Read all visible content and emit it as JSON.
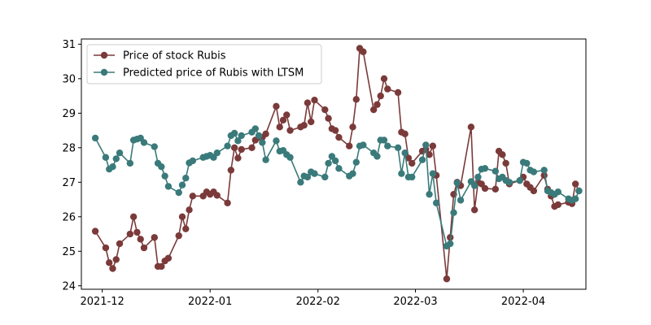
{
  "chart_data": {
    "type": "line",
    "title": "",
    "xlabel": "",
    "ylabel": "",
    "x_axis": {
      "type": "date",
      "range": [
        "2021-11-25",
        "2022-04-19"
      ],
      "ticks": [
        {
          "date": "2021-12-01",
          "label": "2021-12"
        },
        {
          "date": "2022-01-01",
          "label": "2022-01"
        },
        {
          "date": "2022-02-01",
          "label": "2022-02"
        },
        {
          "date": "2022-03-01",
          "label": "2022-03"
        },
        {
          "date": "2022-04-01",
          "label": "2022-04"
        }
      ]
    },
    "y_axis": {
      "range": [
        23.9,
        31.15
      ],
      "ticks": [
        24,
        25,
        26,
        27,
        28,
        29,
        30,
        31
      ]
    },
    "legend": {
      "position": "upper-left"
    },
    "grid": false,
    "series": [
      {
        "name": "Price of stock Rubis",
        "color": "#7b3a3a",
        "points": [
          [
            "2021-11-29",
            25.58
          ],
          [
            "2021-12-02",
            25.1
          ],
          [
            "2021-12-03",
            24.67
          ],
          [
            "2021-12-04",
            24.5
          ],
          [
            "2021-12-05",
            24.76
          ],
          [
            "2021-12-06",
            25.22
          ],
          [
            "2021-12-09",
            25.5
          ],
          [
            "2021-12-10",
            26.0
          ],
          [
            "2021-12-11",
            25.55
          ],
          [
            "2021-12-12",
            25.35
          ],
          [
            "2021-12-13",
            25.1
          ],
          [
            "2021-12-16",
            25.4
          ],
          [
            "2021-12-17",
            24.56
          ],
          [
            "2021-12-18",
            24.56
          ],
          [
            "2021-12-19",
            24.72
          ],
          [
            "2021-12-20",
            24.8
          ],
          [
            "2021-12-23",
            25.45
          ],
          [
            "2021-12-24",
            26.0
          ],
          [
            "2021-12-25",
            25.65
          ],
          [
            "2021-12-26",
            26.2
          ],
          [
            "2021-12-27",
            26.6
          ],
          [
            "2021-12-30",
            26.6
          ],
          [
            "2021-12-31",
            26.72
          ],
          [
            "2022-01-01",
            26.65
          ],
          [
            "2022-01-02",
            26.72
          ],
          [
            "2022-01-03",
            26.62
          ],
          [
            "2022-01-06",
            26.4
          ],
          [
            "2022-01-07",
            27.35
          ],
          [
            "2022-01-08",
            28.0
          ],
          [
            "2022-01-09",
            27.7
          ],
          [
            "2022-01-10",
            27.95
          ],
          [
            "2022-01-13",
            28.0
          ],
          [
            "2022-01-14",
            28.22
          ],
          [
            "2022-01-15",
            28.3
          ],
          [
            "2022-01-16",
            28.3
          ],
          [
            "2022-01-17",
            28.4
          ],
          [
            "2022-01-20",
            29.2
          ],
          [
            "2022-01-21",
            28.6
          ],
          [
            "2022-01-22",
            28.8
          ],
          [
            "2022-01-23",
            28.95
          ],
          [
            "2022-01-24",
            28.5
          ],
          [
            "2022-01-27",
            28.6
          ],
          [
            "2022-01-28",
            28.65
          ],
          [
            "2022-01-29",
            29.3
          ],
          [
            "2022-01-30",
            28.75
          ],
          [
            "2022-01-31",
            29.38
          ],
          [
            "2022-02-03",
            29.1
          ],
          [
            "2022-02-04",
            28.85
          ],
          [
            "2022-02-05",
            28.55
          ],
          [
            "2022-02-06",
            28.5
          ],
          [
            "2022-02-07",
            28.3
          ],
          [
            "2022-02-10",
            28.05
          ],
          [
            "2022-02-11",
            28.6
          ],
          [
            "2022-02-12",
            29.4
          ],
          [
            "2022-02-13",
            30.88
          ],
          [
            "2022-02-14",
            30.78
          ],
          [
            "2022-02-17",
            29.1
          ],
          [
            "2022-02-18",
            29.25
          ],
          [
            "2022-02-19",
            29.5
          ],
          [
            "2022-02-20",
            30.0
          ],
          [
            "2022-02-21",
            29.7
          ],
          [
            "2022-02-24",
            29.6
          ],
          [
            "2022-02-25",
            28.45
          ],
          [
            "2022-02-26",
            28.4
          ],
          [
            "2022-02-27",
            27.7
          ],
          [
            "2022-02-28",
            27.55
          ],
          [
            "2022-03-03",
            27.9
          ],
          [
            "2022-03-04",
            27.95
          ],
          [
            "2022-03-05",
            27.8
          ],
          [
            "2022-03-06",
            28.05
          ],
          [
            "2022-03-07",
            27.2
          ],
          [
            "2022-03-10",
            24.2
          ],
          [
            "2022-03-11",
            25.4
          ],
          [
            "2022-03-12",
            26.65
          ],
          [
            "2022-03-13",
            27.0
          ],
          [
            "2022-03-14",
            26.9
          ],
          [
            "2022-03-17",
            28.6
          ],
          [
            "2022-03-18",
            26.2
          ],
          [
            "2022-03-19",
            27.0
          ],
          [
            "2022-03-20",
            26.95
          ],
          [
            "2022-03-21",
            26.82
          ],
          [
            "2022-03-24",
            26.8
          ],
          [
            "2022-03-25",
            27.9
          ],
          [
            "2022-03-26",
            27.8
          ],
          [
            "2022-03-27",
            27.55
          ],
          [
            "2022-03-28",
            26.95
          ],
          [
            "2022-03-31",
            27.05
          ],
          [
            "2022-04-01",
            27.15
          ],
          [
            "2022-04-02",
            26.95
          ],
          [
            "2022-04-03",
            26.85
          ],
          [
            "2022-04-04",
            26.75
          ],
          [
            "2022-04-07",
            27.2
          ],
          [
            "2022-04-08",
            26.8
          ],
          [
            "2022-04-09",
            26.6
          ],
          [
            "2022-04-10",
            26.3
          ],
          [
            "2022-04-11",
            26.35
          ],
          [
            "2022-04-14",
            26.42
          ],
          [
            "2022-04-15",
            26.38
          ],
          [
            "2022-04-16",
            26.95
          ],
          [
            "2022-04-17",
            26.75
          ]
        ]
      },
      {
        "name": "Predicted price of Rubis with LTSM",
        "color": "#3a7a7a",
        "points": [
          [
            "2021-11-29",
            28.28
          ],
          [
            "2021-12-02",
            27.72
          ],
          [
            "2021-12-03",
            27.38
          ],
          [
            "2021-12-04",
            27.45
          ],
          [
            "2021-12-05",
            27.68
          ],
          [
            "2021-12-06",
            27.85
          ],
          [
            "2021-12-09",
            27.55
          ],
          [
            "2021-12-10",
            28.22
          ],
          [
            "2021-12-11",
            28.25
          ],
          [
            "2021-12-12",
            28.28
          ],
          [
            "2021-12-13",
            28.15
          ],
          [
            "2021-12-16",
            28.03
          ],
          [
            "2021-12-17",
            27.55
          ],
          [
            "2021-12-18",
            27.45
          ],
          [
            "2021-12-19",
            27.18
          ],
          [
            "2021-12-20",
            26.88
          ],
          [
            "2021-12-23",
            26.7
          ],
          [
            "2021-12-24",
            26.92
          ],
          [
            "2021-12-25",
            27.12
          ],
          [
            "2021-12-26",
            27.56
          ],
          [
            "2021-12-27",
            27.62
          ],
          [
            "2021-12-30",
            27.72
          ],
          [
            "2021-12-31",
            27.75
          ],
          [
            "2022-01-01",
            27.78
          ],
          [
            "2022-01-02",
            27.72
          ],
          [
            "2022-01-03",
            27.85
          ],
          [
            "2022-01-06",
            28.05
          ],
          [
            "2022-01-07",
            28.35
          ],
          [
            "2022-01-08",
            28.42
          ],
          [
            "2022-01-09",
            28.2
          ],
          [
            "2022-01-10",
            28.35
          ],
          [
            "2022-01-13",
            28.45
          ],
          [
            "2022-01-14",
            28.55
          ],
          [
            "2022-01-15",
            28.35
          ],
          [
            "2022-01-16",
            28.15
          ],
          [
            "2022-01-17",
            27.65
          ],
          [
            "2022-01-20",
            28.2
          ],
          [
            "2022-01-21",
            27.9
          ],
          [
            "2022-01-22",
            27.92
          ],
          [
            "2022-01-23",
            27.8
          ],
          [
            "2022-01-24",
            27.72
          ],
          [
            "2022-01-27",
            27.0
          ],
          [
            "2022-01-28",
            27.18
          ],
          [
            "2022-01-29",
            27.15
          ],
          [
            "2022-01-30",
            27.3
          ],
          [
            "2022-01-31",
            27.25
          ],
          [
            "2022-02-03",
            27.15
          ],
          [
            "2022-02-04",
            27.55
          ],
          [
            "2022-02-05",
            27.75
          ],
          [
            "2022-02-06",
            27.62
          ],
          [
            "2022-02-07",
            27.4
          ],
          [
            "2022-02-10",
            27.18
          ],
          [
            "2022-02-11",
            27.25
          ],
          [
            "2022-02-12",
            27.58
          ],
          [
            "2022-02-13",
            28.05
          ],
          [
            "2022-02-14",
            28.08
          ],
          [
            "2022-02-17",
            27.85
          ],
          [
            "2022-02-18",
            27.75
          ],
          [
            "2022-02-19",
            28.22
          ],
          [
            "2022-02-20",
            28.22
          ],
          [
            "2022-02-21",
            28.05
          ],
          [
            "2022-02-24",
            28.0
          ],
          [
            "2022-02-25",
            27.25
          ],
          [
            "2022-02-26",
            27.85
          ],
          [
            "2022-02-27",
            27.15
          ],
          [
            "2022-02-28",
            27.15
          ],
          [
            "2022-03-03",
            27.65
          ],
          [
            "2022-03-04",
            28.08
          ],
          [
            "2022-03-05",
            26.65
          ],
          [
            "2022-03-06",
            27.25
          ],
          [
            "2022-03-07",
            26.4
          ],
          [
            "2022-03-10",
            25.15
          ],
          [
            "2022-03-11",
            25.22
          ],
          [
            "2022-03-12",
            26.12
          ],
          [
            "2022-03-13",
            26.98
          ],
          [
            "2022-03-14",
            26.48
          ],
          [
            "2022-03-17",
            27.02
          ],
          [
            "2022-03-18",
            26.9
          ],
          [
            "2022-03-19",
            27.15
          ],
          [
            "2022-03-20",
            27.38
          ],
          [
            "2022-03-21",
            27.4
          ],
          [
            "2022-03-24",
            27.32
          ],
          [
            "2022-03-25",
            27.1
          ],
          [
            "2022-03-26",
            27.15
          ],
          [
            "2022-03-27",
            27.05
          ],
          [
            "2022-03-28",
            27.0
          ],
          [
            "2022-03-31",
            27.05
          ],
          [
            "2022-04-01",
            27.58
          ],
          [
            "2022-04-02",
            27.55
          ],
          [
            "2022-04-03",
            27.35
          ],
          [
            "2022-04-04",
            27.3
          ],
          [
            "2022-04-07",
            27.35
          ],
          [
            "2022-04-08",
            26.75
          ],
          [
            "2022-04-09",
            26.7
          ],
          [
            "2022-04-10",
            26.65
          ],
          [
            "2022-04-11",
            26.72
          ],
          [
            "2022-04-14",
            26.52
          ],
          [
            "2022-04-15",
            26.48
          ],
          [
            "2022-04-16",
            26.52
          ],
          [
            "2022-04-17",
            26.75
          ]
        ]
      }
    ]
  }
}
